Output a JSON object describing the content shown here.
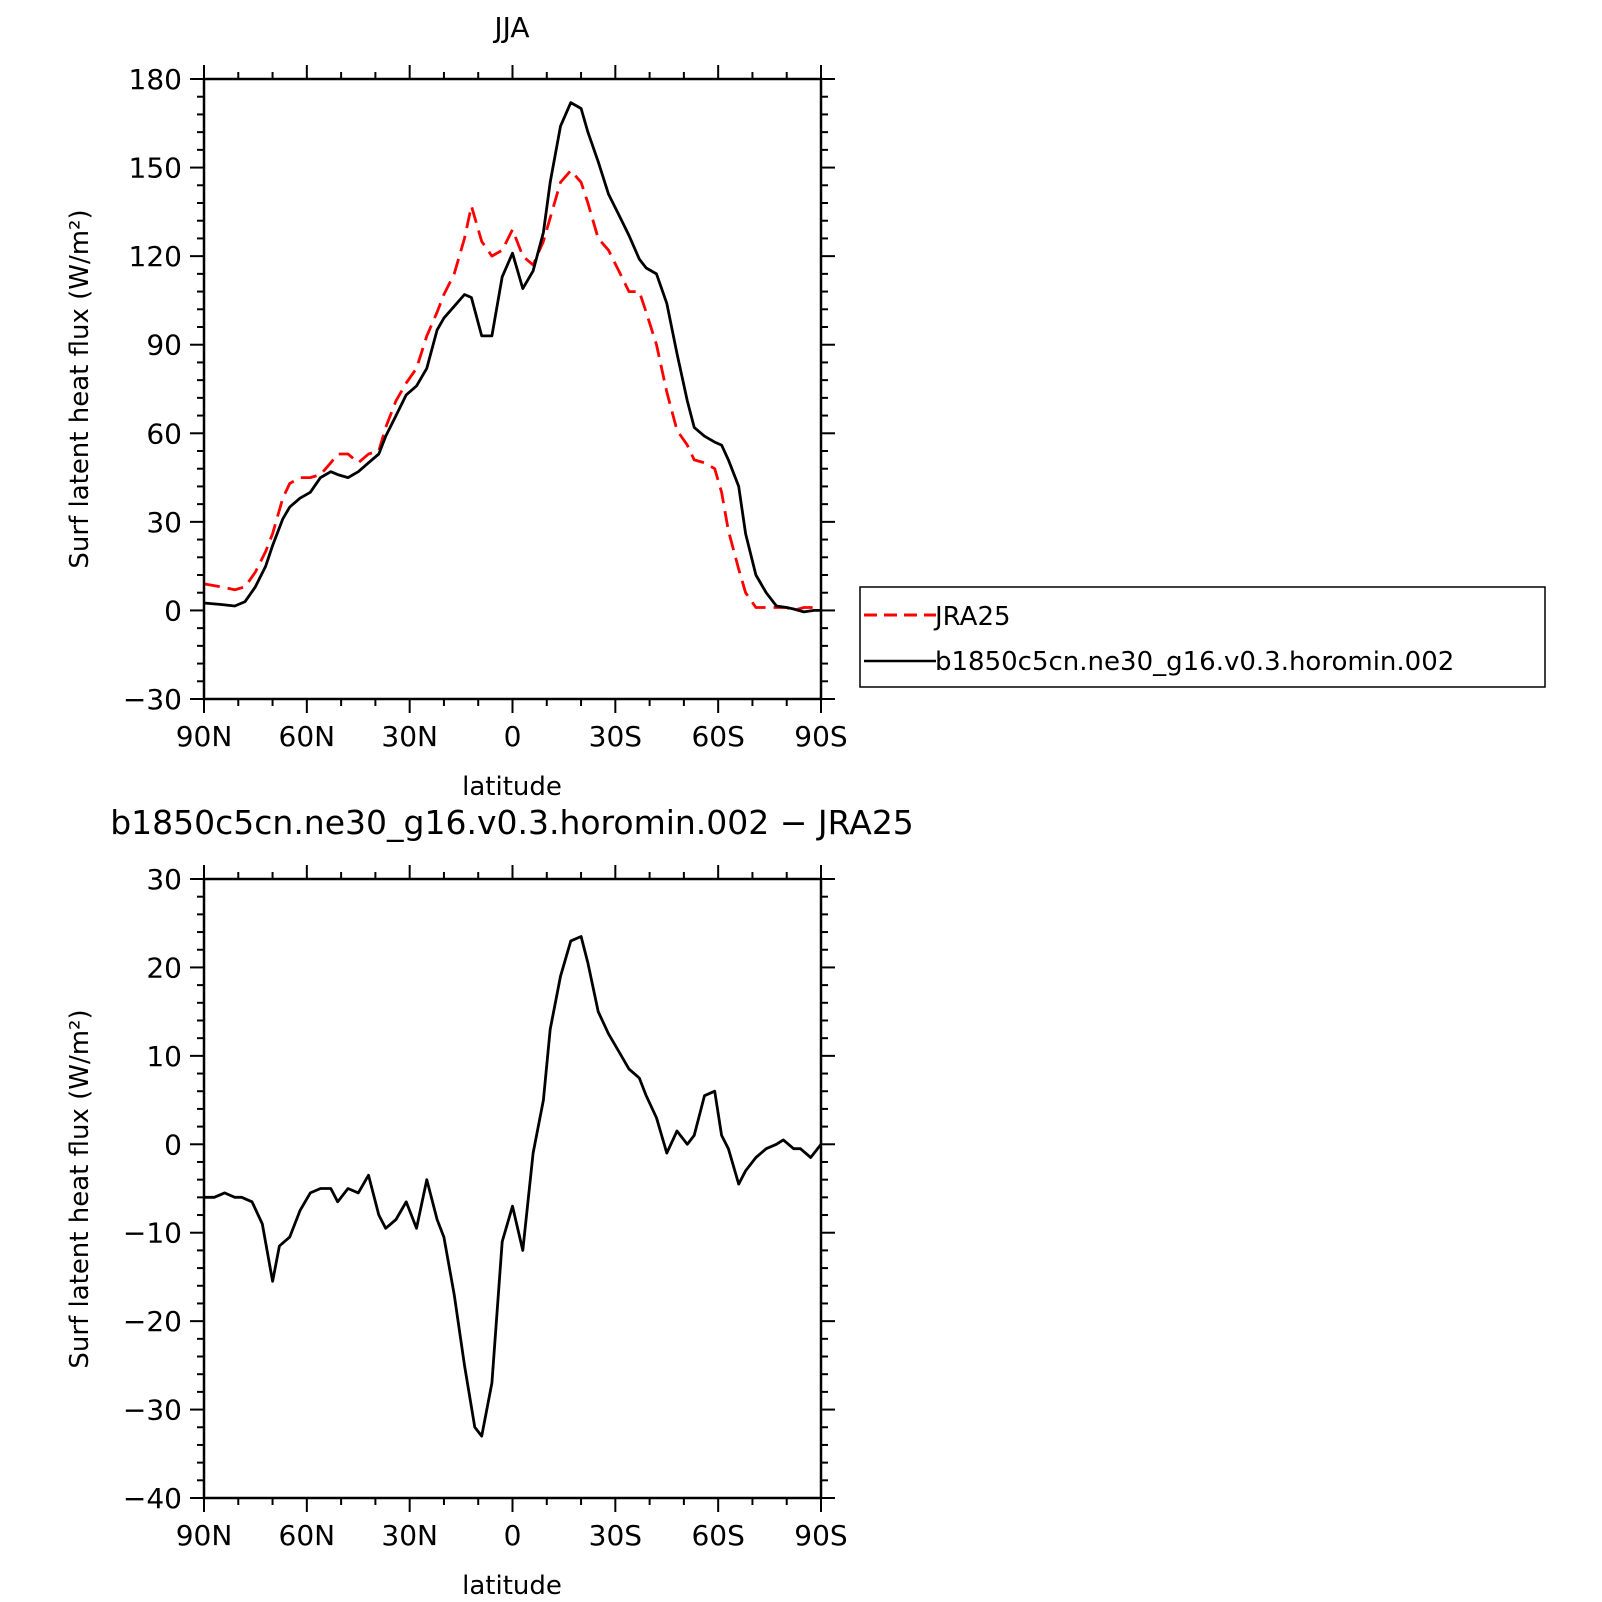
{
  "chart_data": [
    {
      "type": "line",
      "title": "JJA",
      "xlabel": "latitude",
      "ylabel": "Surf latent heat flux (W/m²)",
      "xlim": [
        90,
        -90
      ],
      "ylim": [
        -30,
        180
      ],
      "x_tick_values": [
        90,
        60,
        30,
        0,
        -30,
        -60,
        -90
      ],
      "x_tick_labels": [
        "90N",
        "60N",
        "30N",
        "0",
        "30S",
        "60S",
        "90S"
      ],
      "y_tick_values": [
        -30,
        0,
        30,
        60,
        90,
        120,
        150,
        180
      ],
      "y_tick_labels": [
        "−30",
        "0",
        "30",
        "60",
        "90",
        "120",
        "150",
        "180"
      ],
      "grid": false,
      "legend_position": "right",
      "series": [
        {
          "name": "JRA25",
          "color": "#ff0000",
          "style": "dashed",
          "x": [
            90,
            85,
            81,
            78,
            75,
            72,
            70,
            67,
            65,
            62,
            59,
            56,
            53,
            51,
            48,
            45,
            42,
            39,
            37,
            34,
            31,
            28,
            25,
            22,
            20,
            17,
            14,
            12,
            9,
            6,
            3,
            0,
            -3,
            -6,
            -9,
            -11,
            -14,
            -17,
            -20,
            -22,
            -25,
            -28,
            -31,
            -34,
            -37,
            -39,
            -42,
            -45,
            -48,
            -51,
            -53,
            -56,
            -59,
            -61,
            -63,
            -66,
            -68,
            -71,
            -74,
            -77,
            -80,
            -82,
            -85,
            -88,
            -90
          ],
          "y": [
            9,
            8,
            7,
            8,
            13,
            20,
            26,
            38,
            43,
            45,
            45,
            46,
            50,
            53,
            53,
            50,
            53,
            54,
            62,
            71,
            77,
            82,
            93,
            101,
            107,
            114,
            126,
            137,
            125,
            120,
            122,
            129,
            120,
            117,
            125,
            133,
            145,
            149,
            145,
            138,
            126,
            122,
            115,
            108,
            108,
            101,
            90,
            74,
            61,
            56,
            51,
            50,
            48,
            40,
            27,
            14,
            6,
            1,
            1,
            1,
            1,
            0,
            1,
            1,
            0
          ]
        },
        {
          "name": "b1850c5cn.ne30_g16.v0.3.horomin.002",
          "color": "#000000",
          "style": "solid",
          "x": [
            90,
            85,
            81,
            78,
            75,
            72,
            70,
            67,
            65,
            62,
            59,
            56,
            53,
            51,
            48,
            45,
            42,
            39,
            37,
            34,
            31,
            28,
            25,
            22,
            20,
            17,
            14,
            12,
            9,
            6,
            3,
            0,
            -3,
            -6,
            -9,
            -11,
            -14,
            -17,
            -20,
            -22,
            -25,
            -28,
            -31,
            -34,
            -37,
            -39,
            -42,
            -45,
            -48,
            -51,
            -53,
            -56,
            -59,
            -61,
            -63,
            -66,
            -68,
            -71,
            -74,
            -77,
            -80,
            -82,
            -85,
            -88,
            -90
          ],
          "y": [
            2.5,
            2,
            1.5,
            3,
            8,
            15,
            22,
            31,
            35,
            38,
            40,
            45,
            47,
            46,
            45,
            47,
            50,
            53,
            59,
            66,
            73,
            76,
            82,
            95,
            99,
            103,
            107,
            106,
            93,
            93,
            113,
            121,
            109,
            115,
            128,
            145,
            164,
            172,
            170,
            162,
            152,
            141,
            134,
            127,
            119,
            116,
            114,
            104,
            87,
            71,
            62,
            59,
            57,
            56,
            51,
            42,
            26,
            12,
            6,
            1.5,
            1,
            0.5,
            -0.5,
            0,
            0
          ]
        }
      ]
    },
    {
      "type": "line",
      "title": "b1850c5cn.ne30_g16.v0.3.horomin.002 − JRA25",
      "xlabel": "latitude",
      "ylabel": "Surf latent heat flux (W/m²)",
      "xlim": [
        90,
        -90
      ],
      "ylim": [
        -40,
        30
      ],
      "x_tick_values": [
        90,
        60,
        30,
        0,
        -30,
        -60,
        -90
      ],
      "x_tick_labels": [
        "90N",
        "60N",
        "30N",
        "0",
        "30S",
        "60S",
        "90S"
      ],
      "y_tick_values": [
        -40,
        -30,
        -20,
        -10,
        0,
        10,
        20,
        30
      ],
      "y_tick_labels": [
        "−40",
        "−30",
        "−20",
        "−10",
        "0",
        "10",
        "20",
        "30"
      ],
      "grid": false,
      "series": [
        {
          "color": "#000000",
          "style": "solid",
          "x": [
            90,
            87,
            84,
            81,
            79,
            76,
            73,
            70,
            68,
            65,
            62,
            59,
            56,
            53,
            51,
            48,
            45,
            42,
            39,
            37,
            34,
            31,
            28,
            25,
            22,
            20,
            17,
            14,
            11,
            9,
            6,
            3,
            0,
            -3,
            -6,
            -9,
            -11,
            -14,
            -17,
            -20,
            -22,
            -25,
            -28,
            -31,
            -34,
            -37,
            -39,
            -42,
            -45,
            -48,
            -51,
            -53,
            -56,
            -59,
            -61,
            -63,
            -66,
            -68,
            -71,
            -74,
            -77,
            -79,
            -82,
            -84,
            -87,
            -90
          ],
          "y": [
            -6,
            -6,
            -5.5,
            -6,
            -6,
            -6.5,
            -9,
            -15.5,
            -11.5,
            -10.5,
            -7.5,
            -5.5,
            -5,
            -5,
            -6.5,
            -5,
            -5.5,
            -3.5,
            -8,
            -9.5,
            -8.5,
            -6.5,
            -9.5,
            -4,
            -8.5,
            -10.5,
            -17,
            -25,
            -32,
            -33,
            -27,
            -11,
            -7,
            -12,
            -1,
            5,
            13,
            19,
            23,
            23.5,
            20.5,
            15,
            12.5,
            10.5,
            8.5,
            7.5,
            5.5,
            3,
            -1,
            1.5,
            0,
            1,
            5.5,
            6,
            1,
            -0.5,
            -4.5,
            -3,
            -1.5,
            -0.5,
            0,
            0.5,
            -0.5,
            -0.5,
            -1.5,
            0
          ]
        }
      ]
    }
  ]
}
